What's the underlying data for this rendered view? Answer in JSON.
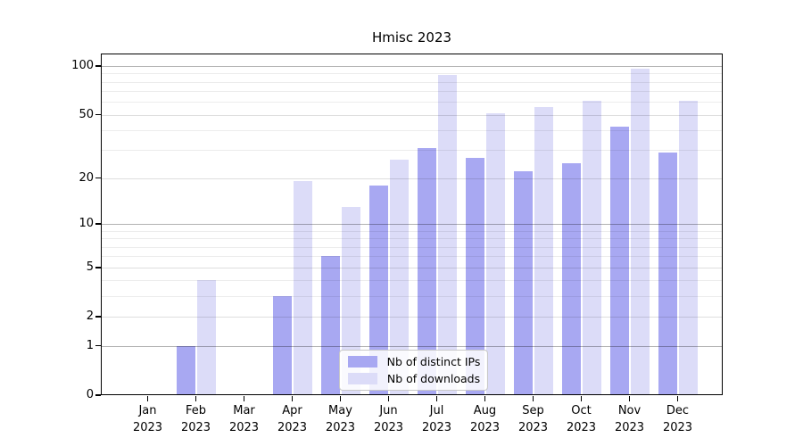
{
  "figure": {
    "title": "Hmisc 2023"
  },
  "chart_data": {
    "type": "bar",
    "title": "Hmisc 2023",
    "categories": [
      "Jan 2023",
      "Feb 2023",
      "Mar 2023",
      "Apr 2023",
      "May 2023",
      "Jun 2023",
      "Jul 2023",
      "Aug 2023",
      "Sep 2023",
      "Oct 2023",
      "Nov 2023",
      "Dec 2023"
    ],
    "x": {
      "months": [
        "Jan",
        "Feb",
        "Mar",
        "Apr",
        "May",
        "Jun",
        "Jul",
        "Aug",
        "Sep",
        "Oct",
        "Nov",
        "Dec"
      ],
      "year": "2023"
    },
    "series": [
      {
        "name": "Nb of distinct IPs",
        "color": "#a8a8f2",
        "values": [
          0,
          1,
          0,
          3,
          6,
          18,
          31,
          27,
          22,
          25,
          42,
          29
        ]
      },
      {
        "name": "Nb of downloads",
        "color": "#dcdcf8",
        "values": [
          0,
          4,
          0,
          19,
          13,
          26,
          88,
          51,
          56,
          61,
          96,
          61
        ]
      }
    ],
    "xlabel": "",
    "ylabel": "",
    "ylim": [
      0,
      100
    ],
    "y_axis": {
      "scale": "log1p",
      "ticks": [
        0,
        1,
        2,
        5,
        10,
        20,
        50,
        100
      ],
      "major_gridlines": [
        1,
        10,
        100
      ],
      "mid_gridlines": [
        2,
        5,
        20,
        50
      ],
      "minor_gridlines": [
        3,
        4,
        6,
        7,
        8,
        9,
        30,
        40,
        60,
        70,
        80,
        90
      ]
    },
    "grid": true,
    "legend": {
      "position": "bottom-center-inside",
      "items": [
        {
          "label": "Nb of distinct IPs",
          "color": "#a8a8f2"
        },
        {
          "label": "Nb of downloads",
          "color": "#dcdcf8"
        }
      ]
    }
  }
}
